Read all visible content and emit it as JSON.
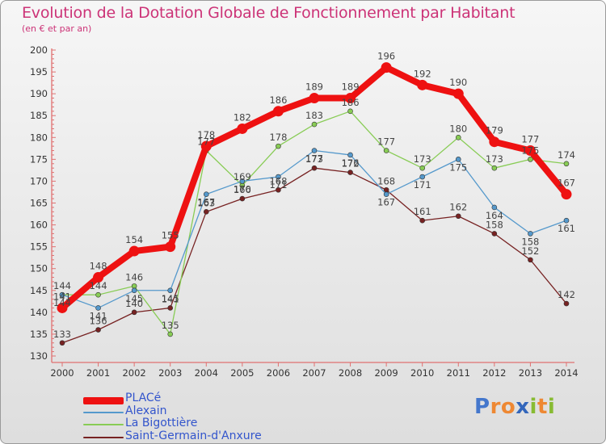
{
  "title": "Evolution de la Dotation Globale de Fonctionnement par Habitant",
  "subtitle": "(en € et par an)",
  "brand": "Proxiti",
  "chart_data": {
    "type": "line",
    "x": [
      "2000",
      "2001",
      "2002",
      "2003",
      "2004",
      "2005",
      "2006",
      "2007",
      "2008",
      "2009",
      "2010",
      "2011",
      "2012",
      "2013",
      "2014"
    ],
    "ylim": [
      130,
      200
    ],
    "yticks": [
      130,
      135,
      140,
      145,
      150,
      155,
      160,
      165,
      170,
      175,
      180,
      185,
      190,
      195,
      200
    ],
    "grid": false,
    "legend_position": "bottom-left",
    "series": [
      {
        "name": "PLACé",
        "color": "#ee1111",
        "values": [
          141,
          148,
          154,
          155,
          178,
          182,
          186,
          189,
          189,
          196,
          192,
          190,
          179,
          177,
          167
        ]
      },
      {
        "name": "Alexain",
        "color": "#5599cc",
        "values": [
          144,
          141,
          145,
          145,
          167,
          170,
          171,
          177,
          176,
          167,
          171,
          175,
          164,
          158,
          161
        ]
      },
      {
        "name": "La Bigottière",
        "color": "#88cc55",
        "values": [
          144,
          144,
          146,
          135,
          177,
          169,
          178,
          183,
          186,
          177,
          173,
          180,
          173,
          175,
          174
        ]
      },
      {
        "name": "Saint-Germain-d'Anxure",
        "color": "#772222",
        "values": [
          133,
          136,
          140,
          141,
          163,
          166,
          168,
          173,
          172,
          168,
          161,
          162,
          158,
          152,
          142
        ]
      }
    ]
  }
}
